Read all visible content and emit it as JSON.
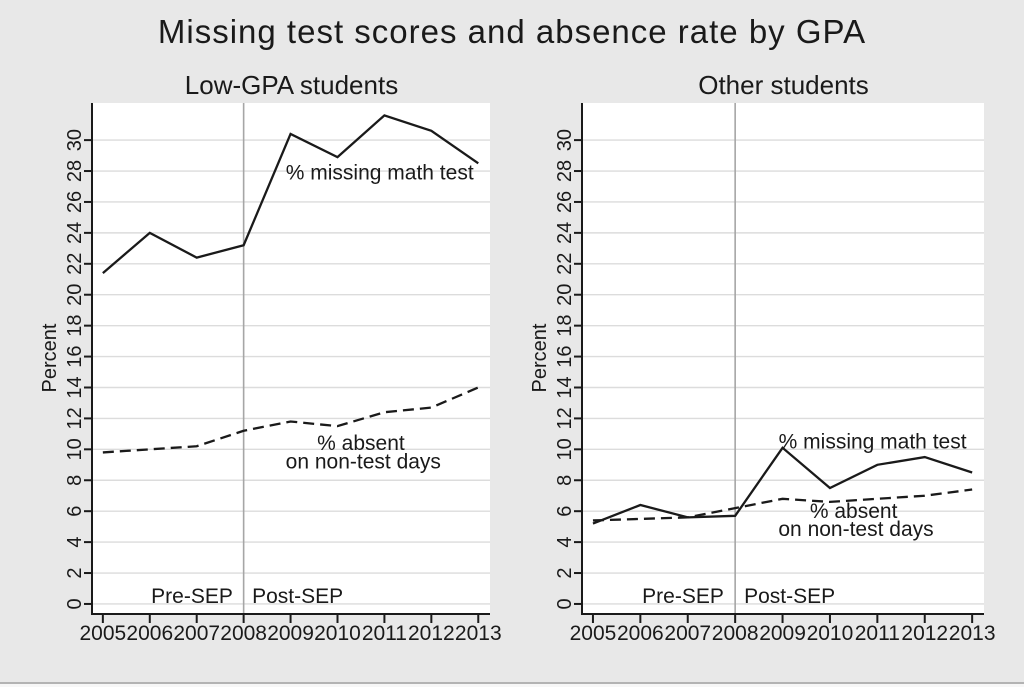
{
  "figure": {
    "title": "Missing test scores and absence rate by GPA"
  },
  "colors": {
    "background": "#e8e8e8",
    "plot_background": "#ffffff",
    "grid_line": "#dcdcdc",
    "axis_and_text": "#1a1a1a",
    "series_line": "#1a1a1a",
    "divider_line": "#a6a6a6"
  },
  "chart_data": [
    {
      "type": "line",
      "title": "Low-GPA students",
      "ylabel": "Percent",
      "x": [
        2005,
        2006,
        2007,
        2008,
        2009,
        2010,
        2011,
        2012,
        2013
      ],
      "xlim": [
        2004.79,
        2013.25
      ],
      "ylim": [
        -0.65,
        32.4
      ],
      "yticks": [
        0,
        2,
        4,
        6,
        8,
        10,
        12,
        14,
        16,
        18,
        20,
        22,
        24,
        26,
        28,
        30
      ],
      "grid": true,
      "legend_position": "direct-labels",
      "vline_x": 2008,
      "series": [
        {
          "name": "% missing math test",
          "style": "solid",
          "values": [
            21.4,
            24.0,
            22.4,
            23.2,
            30.4,
            28.9,
            31.6,
            30.6,
            28.5
          ]
        },
        {
          "name": "% absent on non-test days",
          "style": "dashed",
          "values": [
            9.8,
            10.0,
            10.2,
            11.2,
            11.8,
            11.5,
            12.4,
            12.7,
            14.0
          ]
        }
      ],
      "annotations": [
        {
          "text": "% missing math test",
          "x": 2010.9,
          "y": 27.9
        },
        {
          "text": "% absent",
          "x": 2010.5,
          "y": 10.4
        },
        {
          "text": "on non-test days",
          "x": 2010.55,
          "y": 9.2
        },
        {
          "text": "Pre-SEP",
          "x": 2006.9,
          "y": 0.5
        },
        {
          "text": "Post-SEP",
          "x": 2009.15,
          "y": 0.5
        }
      ]
    },
    {
      "type": "line",
      "title": "Other students",
      "ylabel": "Percent",
      "x": [
        2005,
        2006,
        2007,
        2008,
        2009,
        2010,
        2011,
        2012,
        2013
      ],
      "xlim": [
        2004.79,
        2013.25
      ],
      "ylim": [
        -0.65,
        32.4
      ],
      "yticks": [
        0,
        2,
        4,
        6,
        8,
        10,
        12,
        14,
        16,
        18,
        20,
        22,
        24,
        26,
        28,
        30
      ],
      "grid": true,
      "legend_position": "direct-labels",
      "vline_x": 2008,
      "series": [
        {
          "name": "% missing math test",
          "style": "solid",
          "values": [
            5.2,
            6.4,
            5.6,
            5.7,
            10.1,
            7.5,
            9.0,
            9.5,
            8.5
          ]
        },
        {
          "name": "% absent on non-test days",
          "style": "dashed",
          "values": [
            5.4,
            5.5,
            5.6,
            6.2,
            6.8,
            6.6,
            6.8,
            7.0,
            7.4
          ]
        }
      ],
      "annotations": [
        {
          "text": "% missing math test",
          "x": 2010.9,
          "y": 10.5
        },
        {
          "text": "% absent",
          "x": 2010.5,
          "y": 6.0
        },
        {
          "text": "on non-test days",
          "x": 2010.55,
          "y": 4.85
        },
        {
          "text": "Pre-SEP",
          "x": 2006.9,
          "y": 0.5
        },
        {
          "text": "Post-SEP",
          "x": 2009.15,
          "y": 0.5
        }
      ]
    }
  ]
}
